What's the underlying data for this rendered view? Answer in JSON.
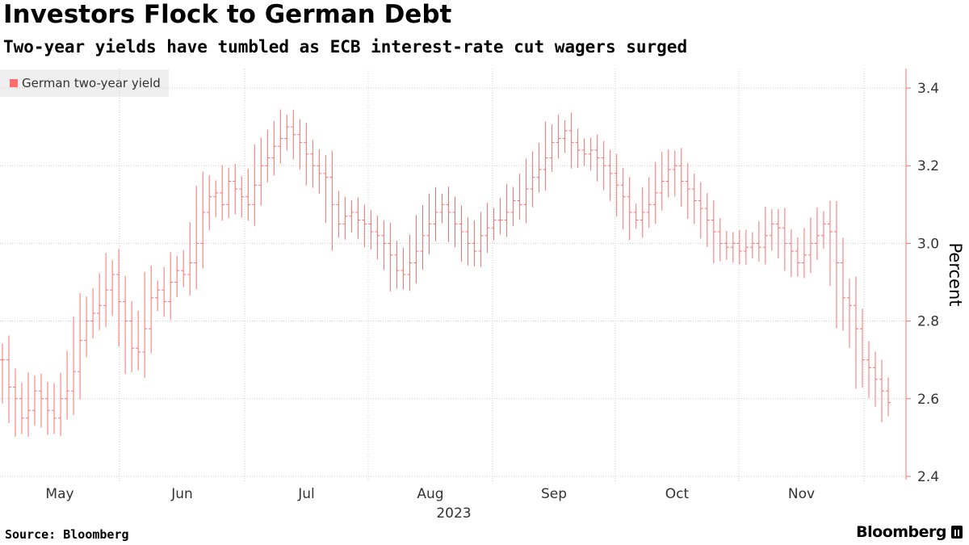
{
  "title": "Investors Flock to German Debt",
  "subtitle": "Two-year yields have tumbled as ECB interest-rate cut wagers surged",
  "source": "Source: Bloomberg",
  "brand": "Bloomberg",
  "colors": {
    "series": "#ff6e6e",
    "grid": "#cccccc",
    "axis": "#ff6e6e"
  },
  "chart_data": {
    "type": "line",
    "chart_style": "ohlc-bars",
    "title": "Investors Flock to German Debt",
    "subtitle": "Two-year yields have tumbled as ECB interest-rate cut wagers surged",
    "ylabel": "Percent",
    "ylim": [
      2.4,
      3.45
    ],
    "yticks": [
      2.4,
      2.6,
      2.8,
      3.0,
      3.2,
      3.4
    ],
    "ytick_labels": [
      "2.4",
      "2.6",
      "2.8",
      "3.0",
      "3.2",
      "3.4"
    ],
    "y_axis_side": "right",
    "x_tick_labels": [
      "May",
      "Jun",
      "Jul",
      "Aug",
      "Sep",
      "Oct",
      "Nov"
    ],
    "x_year_label": "2023",
    "legend": {
      "position": "top-left",
      "entries": [
        "German two-year yield"
      ]
    },
    "grid": true,
    "series": [
      {
        "name": "German two-year yield",
        "values": [
          2.7,
          2.63,
          2.6,
          2.55,
          2.57,
          2.62,
          2.6,
          2.57,
          2.55,
          2.6,
          2.62,
          2.67,
          2.75,
          2.8,
          2.82,
          2.84,
          2.88,
          2.92,
          2.85,
          2.8,
          2.73,
          2.72,
          2.78,
          2.86,
          2.88,
          2.85,
          2.9,
          2.93,
          2.92,
          2.95,
          3.0,
          3.08,
          3.12,
          3.13,
          3.1,
          3.16,
          3.14,
          3.12,
          3.1,
          3.15,
          3.2,
          3.22,
          3.25,
          3.27,
          3.3,
          3.28,
          3.26,
          3.23,
          3.2,
          3.18,
          3.17,
          3.1,
          3.05,
          3.07,
          3.08,
          3.06,
          3.05,
          3.03,
          3.02,
          3.0,
          2.97,
          2.93,
          2.92,
          2.95,
          2.98,
          3.02,
          3.05,
          3.08,
          3.1,
          3.08,
          3.05,
          3.03,
          3.0,
          2.98,
          3.02,
          3.04,
          3.06,
          3.06,
          3.08,
          3.11,
          3.1,
          3.14,
          3.17,
          3.19,
          3.22,
          3.26,
          3.27,
          3.29,
          3.26,
          3.24,
          3.23,
          3.24,
          3.22,
          3.2,
          3.18,
          3.15,
          3.12,
          3.08,
          3.06,
          3.08,
          3.1,
          3.13,
          3.16,
          3.19,
          3.2,
          3.16,
          3.14,
          3.11,
          3.09,
          3.06,
          3.03,
          3.0,
          2.99,
          3.0,
          2.98,
          2.99,
          3.0,
          2.99,
          3.02,
          3.05,
          3.04,
          3.0,
          2.98,
          2.95,
          2.97,
          3.0,
          3.02,
          3.05,
          3.03,
          2.95,
          2.86,
          2.84,
          2.78,
          2.7,
          2.68,
          2.65,
          2.62,
          2.59
        ]
      }
    ]
  }
}
